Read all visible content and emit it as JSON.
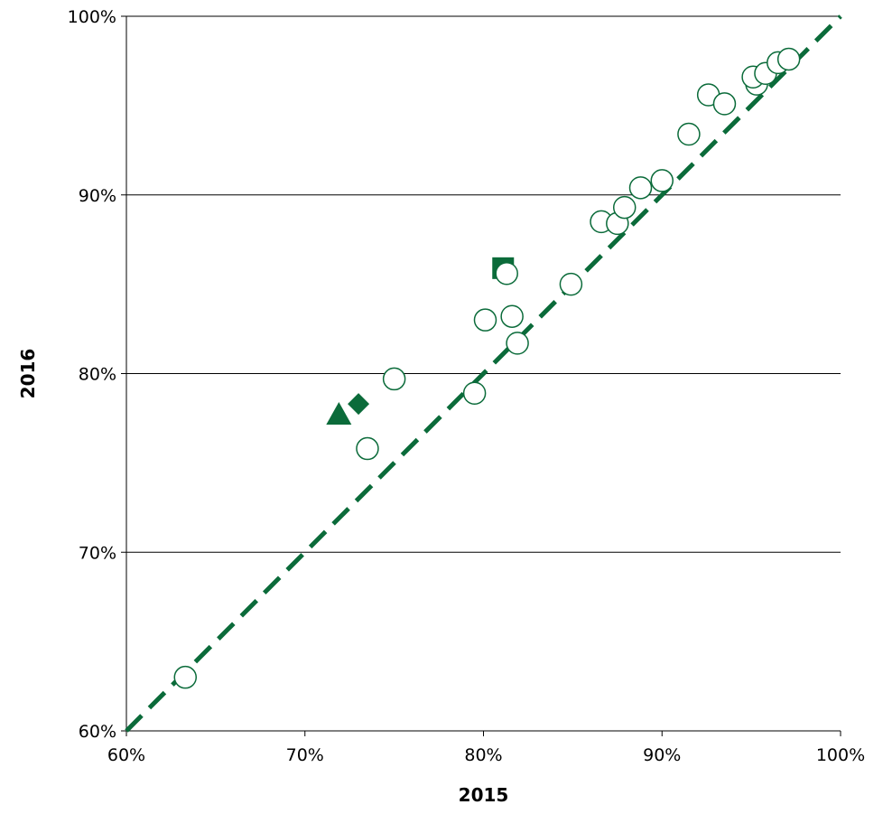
{
  "chart_data": {
    "type": "scatter",
    "title": "",
    "xlabel": "2015",
    "ylabel": "2016",
    "xlim": [
      60,
      100
    ],
    "ylim": [
      60,
      100
    ],
    "x_ticks": [
      60,
      70,
      80,
      90,
      100
    ],
    "y_ticks": [
      60,
      70,
      80,
      90,
      100
    ],
    "x_tick_labels": [
      "60%",
      "70%",
      "80%",
      "90%",
      "100%"
    ],
    "y_tick_labels": [
      "60%",
      "70%",
      "80%",
      "90%",
      "100%"
    ],
    "grid": "horizontal",
    "reference_line": {
      "style": "dashed",
      "from": [
        60,
        60
      ],
      "to": [
        100,
        100
      ],
      "color": "#0b6b3a"
    },
    "colors": {
      "marker": "#0b6b3a",
      "grid": "#000000"
    },
    "series": [
      {
        "marker": "open-circle",
        "points": [
          [
            63.3,
            63.0
          ],
          [
            73.5,
            75.8
          ],
          [
            75.0,
            79.7
          ],
          [
            79.5,
            78.9
          ],
          [
            80.1,
            83.0
          ],
          [
            81.3,
            85.6
          ],
          [
            81.6,
            83.2
          ],
          [
            81.9,
            81.7
          ],
          [
            84.9,
            85.0
          ],
          [
            86.6,
            88.5
          ],
          [
            87.5,
            88.4
          ],
          [
            87.9,
            89.3
          ],
          [
            88.8,
            90.4
          ],
          [
            90.0,
            90.8
          ],
          [
            91.5,
            93.4
          ],
          [
            92.6,
            95.6
          ],
          [
            93.5,
            95.1
          ],
          [
            95.3,
            96.2
          ],
          [
            95.1,
            96.6
          ],
          [
            95.8,
            96.8
          ],
          [
            96.5,
            97.4
          ],
          [
            97.1,
            97.6
          ]
        ]
      },
      {
        "marker": "filled-square",
        "points": [
          [
            81.1,
            85.9
          ]
        ]
      },
      {
        "marker": "filled-diamond",
        "points": [
          [
            73.0,
            78.3
          ]
        ]
      },
      {
        "marker": "filled-triangle",
        "points": [
          [
            71.9,
            77.7
          ]
        ]
      }
    ]
  }
}
